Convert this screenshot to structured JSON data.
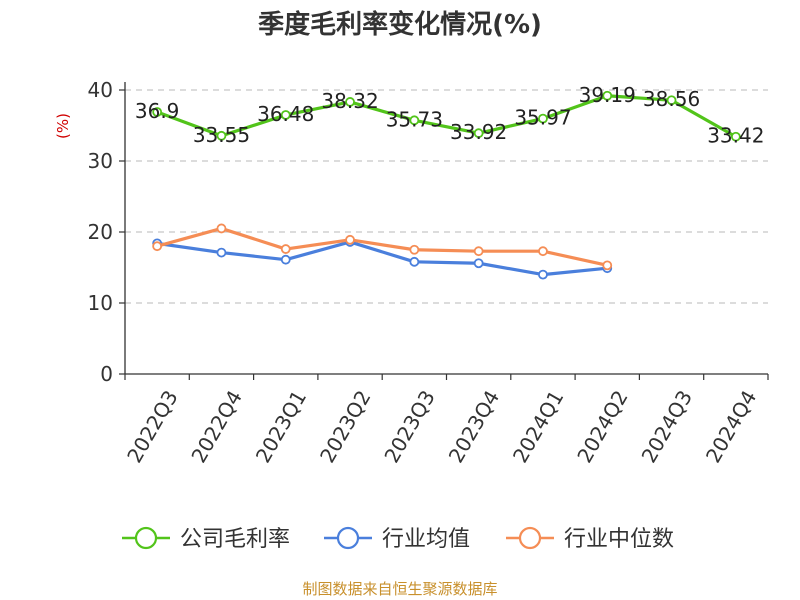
{
  "chart_data": {
    "type": "line",
    "title": "季度毛利率变化情况(%)",
    "ylabel": "(%)",
    "ylim": [
      0,
      40
    ],
    "yticks": [
      0,
      10,
      20,
      30,
      40
    ],
    "grid": true,
    "legend_position": "bottom",
    "categories": [
      "2022Q3",
      "2022Q4",
      "2023Q1",
      "2023Q2",
      "2023Q3",
      "2023Q4",
      "2024Q1",
      "2024Q2",
      "2024Q3",
      "2024Q4"
    ],
    "series": [
      {
        "name": "公司毛利率",
        "color": "#52c41a",
        "values": [
          36.9,
          33.55,
          36.48,
          38.32,
          35.73,
          33.92,
          35.97,
          39.19,
          38.56,
          33.42
        ],
        "labels": [
          "36.9",
          "33.55",
          "36.48",
          "38.32",
          "35.73",
          "33.92",
          "35.97",
          "39.19",
          "38.56",
          "33.42"
        ]
      },
      {
        "name": "行业均值",
        "color": "#4a7fdc",
        "values": [
          18.4,
          17.1,
          16.1,
          18.6,
          15.8,
          15.6,
          14.0,
          14.9,
          null,
          null
        ]
      },
      {
        "name": "行业中位数",
        "color": "#f58d55",
        "values": [
          18.0,
          20.5,
          17.6,
          18.9,
          17.5,
          17.3,
          17.3,
          15.3,
          null,
          null
        ]
      }
    ],
    "source": "制图数据来自恒生聚源数据库"
  }
}
